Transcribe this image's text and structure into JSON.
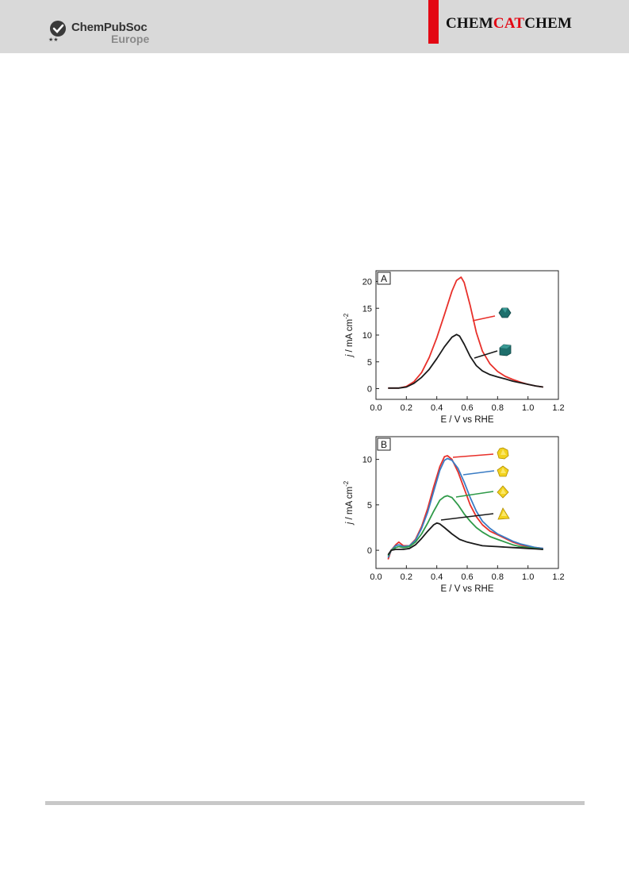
{
  "header": {
    "publisher_line1": "ChemPubSoc",
    "publisher_line2": "Europe",
    "journal_part1": "CHEM",
    "journal_part2": "CAT",
    "journal_part3": "CHEM",
    "accent_color": "#e30613"
  },
  "chart_data": [
    {
      "type": "line",
      "panel_label": "A",
      "xlabel": "E / V vs RHE",
      "ylabel_italic": "j",
      "ylabel_rest": " / mA cm",
      "ylabel_sup": "-2",
      "xlim": [
        0.0,
        1.2
      ],
      "ylim": [
        -2,
        22
      ],
      "xticks": [
        "0.0",
        "0.2",
        "0.4",
        "0.6",
        "0.8",
        "1.0",
        "1.2"
      ],
      "yticks": [
        "0",
        "5",
        "10",
        "15",
        "20"
      ],
      "grid": false,
      "legend": "marker icons with leader lines, right side",
      "series": [
        {
          "color": "#e8302a",
          "marker_icon": "teal-polyhedron-icon",
          "x": [
            0.08,
            0.15,
            0.2,
            0.25,
            0.3,
            0.35,
            0.4,
            0.45,
            0.5,
            0.53,
            0.56,
            0.58,
            0.62,
            0.66,
            0.7,
            0.75,
            0.8,
            0.85,
            0.9,
            0.95,
            1.0,
            1.05,
            1.1
          ],
          "y": [
            0.1,
            0.1,
            0.4,
            1.3,
            3.0,
            5.8,
            9.5,
            13.8,
            18.2,
            20.2,
            20.8,
            19.8,
            15.5,
            10.5,
            7.0,
            4.6,
            3.2,
            2.3,
            1.7,
            1.2,
            0.8,
            0.5,
            0.3
          ]
        },
        {
          "color": "#1a1a1a",
          "marker_icon": "teal-cube-icon",
          "x": [
            0.08,
            0.15,
            0.2,
            0.25,
            0.3,
            0.35,
            0.4,
            0.45,
            0.5,
            0.53,
            0.55,
            0.58,
            0.62,
            0.66,
            0.7,
            0.75,
            0.8,
            0.85,
            0.9,
            0.95,
            1.0,
            1.05,
            1.1
          ],
          "y": [
            0.1,
            0.1,
            0.3,
            1.0,
            2.1,
            3.6,
            5.6,
            7.8,
            9.6,
            10.1,
            9.8,
            8.3,
            6.0,
            4.3,
            3.3,
            2.6,
            2.2,
            1.8,
            1.4,
            1.1,
            0.8,
            0.5,
            0.3
          ]
        }
      ]
    },
    {
      "type": "line",
      "panel_label": "B",
      "xlabel": "E / V vs RHE",
      "ylabel_italic": "j",
      "ylabel_rest": " / mA cm",
      "ylabel_sup": "-2",
      "xlim": [
        0.0,
        1.2
      ],
      "ylim": [
        -2,
        12.5
      ],
      "xticks": [
        "0.0",
        "0.2",
        "0.4",
        "0.6",
        "0.8",
        "1.0",
        "1.2"
      ],
      "yticks": [
        "0",
        "5",
        "10"
      ],
      "grid": false,
      "legend": "marker icons with leader lines, right side",
      "series": [
        {
          "color": "#e8302a",
          "marker_icon": "yellow-icosahedron-icon",
          "x": [
            0.08,
            0.1,
            0.13,
            0.15,
            0.18,
            0.22,
            0.26,
            0.3,
            0.34,
            0.38,
            0.42,
            0.45,
            0.47,
            0.5,
            0.54,
            0.58,
            0.62,
            0.66,
            0.7,
            0.75,
            0.8,
            0.85,
            0.9,
            0.95,
            1.0,
            1.05,
            1.1
          ],
          "y": [
            -1.0,
            0.0,
            0.6,
            0.9,
            0.5,
            0.5,
            1.2,
            2.6,
            4.6,
            7.0,
            9.2,
            10.3,
            10.4,
            10.0,
            8.6,
            6.8,
            5.0,
            3.7,
            2.8,
            2.1,
            1.7,
            1.3,
            0.9,
            0.6,
            0.4,
            0.3,
            0.2
          ]
        },
        {
          "color": "#3a7cc4",
          "marker_icon": "yellow-dodecahedron-icon",
          "x": [
            0.08,
            0.1,
            0.13,
            0.15,
            0.18,
            0.22,
            0.26,
            0.3,
            0.34,
            0.38,
            0.42,
            0.45,
            0.47,
            0.5,
            0.54,
            0.58,
            0.62,
            0.66,
            0.7,
            0.75,
            0.8,
            0.85,
            0.9,
            0.95,
            1.0,
            1.05,
            1.1
          ],
          "y": [
            -0.8,
            0.0,
            0.5,
            0.6,
            0.4,
            0.5,
            1.1,
            2.4,
            4.2,
            6.5,
            8.8,
            9.9,
            10.1,
            9.9,
            9.0,
            7.5,
            5.8,
            4.3,
            3.2,
            2.4,
            1.8,
            1.4,
            1.0,
            0.7,
            0.5,
            0.3,
            0.2
          ]
        },
        {
          "color": "#2f9a48",
          "marker_icon": "yellow-octahedron-icon",
          "x": [
            0.08,
            0.1,
            0.13,
            0.15,
            0.18,
            0.22,
            0.26,
            0.3,
            0.34,
            0.38,
            0.42,
            0.45,
            0.47,
            0.5,
            0.54,
            0.58,
            0.62,
            0.66,
            0.7,
            0.75,
            0.8,
            0.85,
            0.9,
            0.95,
            1.0,
            1.05,
            1.1
          ],
          "y": [
            -0.6,
            0.0,
            0.3,
            0.4,
            0.3,
            0.4,
            0.9,
            1.8,
            3.0,
            4.3,
            5.5,
            5.9,
            6.0,
            5.8,
            5.0,
            4.0,
            3.2,
            2.5,
            2.0,
            1.5,
            1.2,
            0.9,
            0.6,
            0.4,
            0.3,
            0.2,
            0.1
          ]
        },
        {
          "color": "#1a1a1a",
          "marker_icon": "yellow-tetrahedron-icon",
          "x": [
            0.08,
            0.1,
            0.13,
            0.15,
            0.18,
            0.22,
            0.26,
            0.3,
            0.34,
            0.38,
            0.4,
            0.42,
            0.45,
            0.5,
            0.55,
            0.6,
            0.65,
            0.7,
            0.75,
            0.8,
            0.85,
            0.9,
            0.95,
            1.0,
            1.05,
            1.1
          ],
          "y": [
            -0.5,
            0.0,
            0.1,
            0.1,
            0.1,
            0.2,
            0.6,
            1.3,
            2.1,
            2.8,
            3.0,
            2.9,
            2.5,
            1.8,
            1.2,
            0.9,
            0.7,
            0.5,
            0.45,
            0.4,
            0.35,
            0.3,
            0.25,
            0.2,
            0.15,
            0.1
          ]
        }
      ]
    }
  ]
}
